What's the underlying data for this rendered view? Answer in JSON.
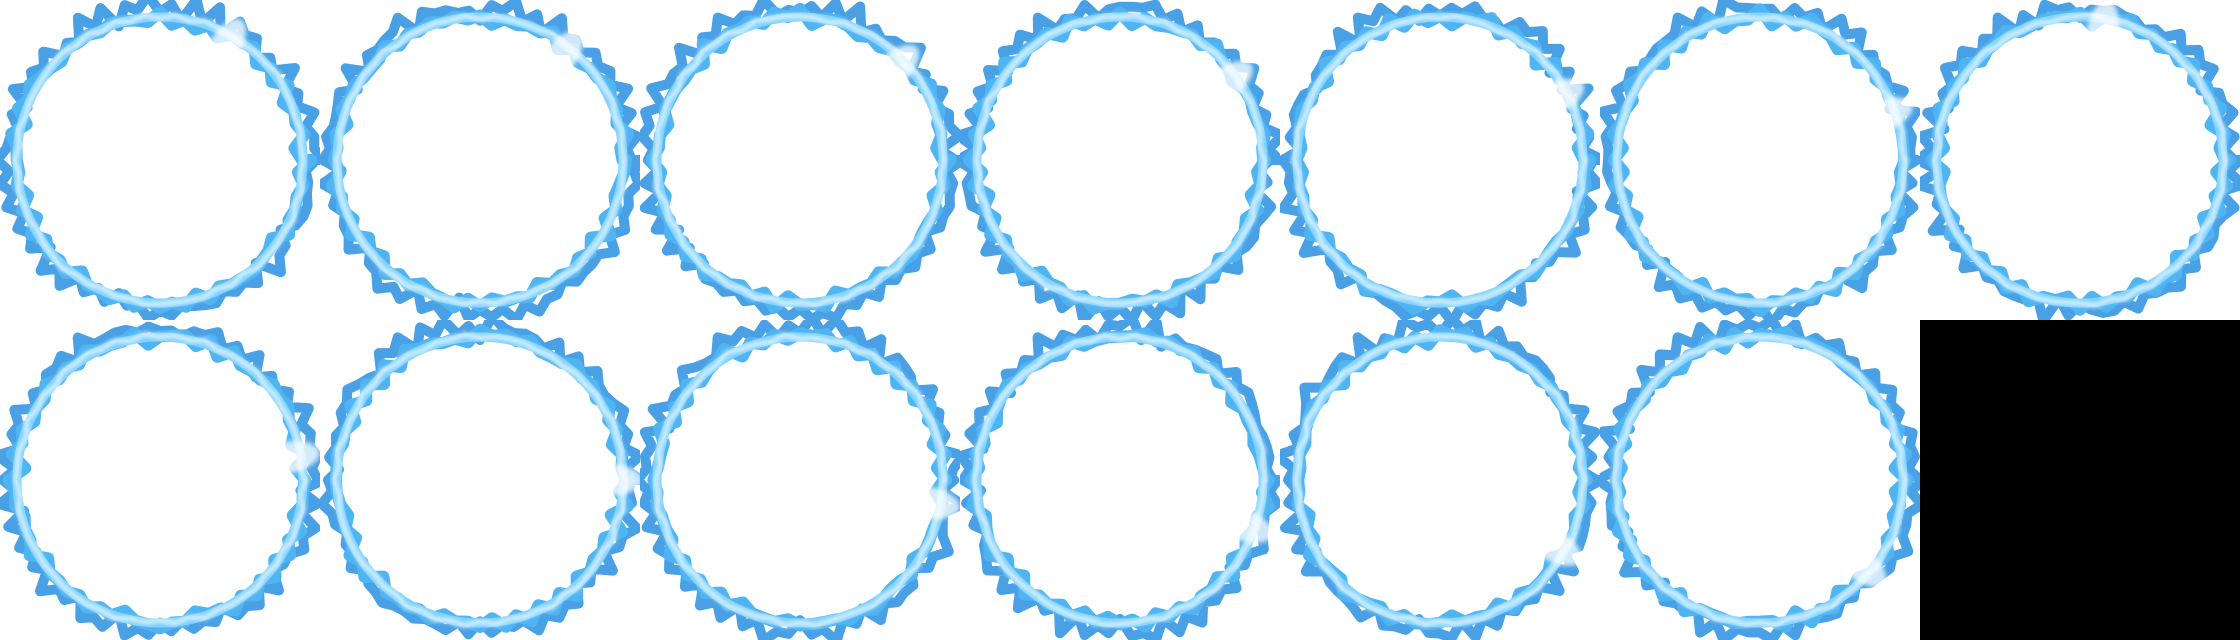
{
  "sprite_sheet": {
    "columns": 7,
    "rows": 2,
    "frames": [
      {
        "index": 1,
        "kind": "ring",
        "ring_color": "#2a8fe0",
        "glow_color": "#e6f6ff",
        "flare_angle": 30
      },
      {
        "index": 2,
        "kind": "ring",
        "ring_color": "#2a8fe0",
        "glow_color": "#e6f6ff",
        "flare_angle": 38
      },
      {
        "index": 3,
        "kind": "ring",
        "ring_color": "#2a8fe0",
        "glow_color": "#e6f6ff",
        "flare_angle": 46
      },
      {
        "index": 4,
        "kind": "ring",
        "ring_color": "#2a8fe0",
        "glow_color": "#e6f6ff",
        "flare_angle": 54
      },
      {
        "index": 5,
        "kind": "ring",
        "ring_color": "#2a8fe0",
        "glow_color": "#e6f6ff",
        "flare_angle": 62
      },
      {
        "index": 6,
        "kind": "ring",
        "ring_color": "#2a8fe0",
        "glow_color": "#e6f6ff",
        "flare_angle": 70
      },
      {
        "index": 7,
        "kind": "ring",
        "ring_color": "#2a8fe0",
        "glow_color": "#e6f6ff",
        "flare_angle": 10
      },
      {
        "index": 8,
        "kind": "ring",
        "ring_color": "#2a8fe0",
        "glow_color": "#e6f6ff",
        "flare_angle": 80
      },
      {
        "index": 9,
        "kind": "ring",
        "ring_color": "#2a8fe0",
        "glow_color": "#e6f6ff",
        "flare_angle": 90
      },
      {
        "index": 10,
        "kind": "ring",
        "ring_color": "#2a8fe0",
        "glow_color": "#e6f6ff",
        "flare_angle": 100
      },
      {
        "index": 11,
        "kind": "ring",
        "ring_color": "#2a8fe0",
        "glow_color": "#e6f6ff",
        "flare_angle": 110
      },
      {
        "index": 12,
        "kind": "ring",
        "ring_color": "#2a8fe0",
        "glow_color": "#e6f6ff",
        "flare_angle": 120
      },
      {
        "index": 13,
        "kind": "ring",
        "ring_color": "#2a8fe0",
        "glow_color": "#e6f6ff",
        "flare_angle": 130
      },
      {
        "index": 14,
        "kind": "empty",
        "fill_color": "#000000"
      }
    ]
  }
}
